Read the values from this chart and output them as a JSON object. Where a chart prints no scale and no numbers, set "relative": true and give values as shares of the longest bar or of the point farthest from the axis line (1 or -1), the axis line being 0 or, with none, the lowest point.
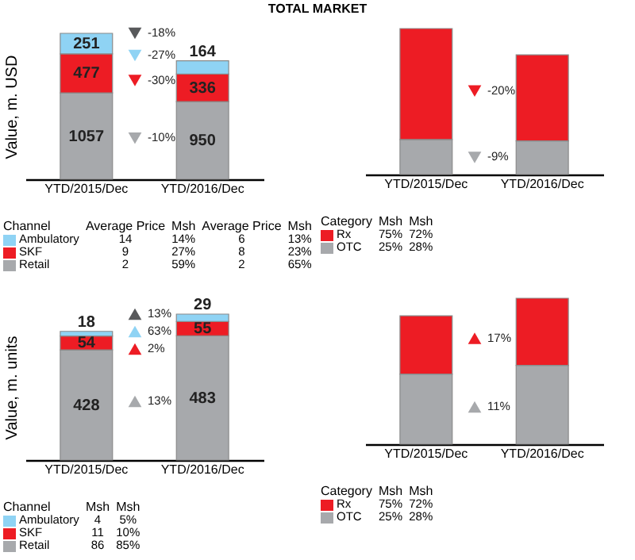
{
  "chart_data": [
    {
      "type": "bar",
      "title": "TOTAL MARKET",
      "stacked": true,
      "ylabel": "Value, m. USD",
      "categories": [
        "YTD/2015/Dec",
        "YTD/2016/Dec"
      ],
      "data_labels": true,
      "tick_labels": "x",
      "legend": "bottom",
      "legend_title": "Channel",
      "series": [
        {
          "name": "Retail",
          "color": "#a7a9ac",
          "values": [
            1057,
            950
          ]
        },
        {
          "name": "SKF",
          "color": "#ed1c24",
          "values": [
            477,
            336
          ]
        },
        {
          "name": "Ambulatory",
          "color": "#8fd3f4",
          "values": [
            251,
            164
          ]
        }
      ],
      "annotations": [
        "-18%",
        "-27%",
        "-30%",
        "-10%",
        "Average Price  Msh  Average Price  Msh",
        "14  14%  6  13%",
        "9  27%  8  23%",
        "2  59%  2  65%"
      ]
    },
    {
      "type": "bar",
      "stacked": true,
      "relative": true,
      "categories": [
        "YTD/2015/Dec",
        "YTD/2016/Dec"
      ],
      "legend": "bottom",
      "legend_title": "Category",
      "series": [
        {
          "name": "OTC",
          "color": "#a7a9ac",
          "values": [
            0.24,
            0.23
          ]
        },
        {
          "name": "Rx",
          "color": "#ed1c24",
          "values": [
            0.76,
            0.59
          ]
        }
      ],
      "annotations": [
        "-20%",
        "-9%",
        "Msh  Msh",
        "75%  72%",
        "25%  28%"
      ]
    },
    {
      "type": "bar",
      "stacked": true,
      "ylabel": "Value, m. units",
      "categories": [
        "YTD/2015/Dec",
        "YTD/2016/Dec"
      ],
      "data_labels": true,
      "tick_labels": "x",
      "legend": "bottom",
      "legend_title": "Channel",
      "series": [
        {
          "name": "Retail",
          "color": "#a7a9ac",
          "values": [
            428,
            483
          ]
        },
        {
          "name": "SKF",
          "color": "#ed1c24",
          "values": [
            54,
            55
          ]
        },
        {
          "name": "Ambulatory",
          "color": "#8fd3f4",
          "values": [
            18,
            29
          ]
        }
      ],
      "annotations": [
        "13%",
        "63%",
        "2%",
        "13%",
        "Msh  Msh",
        "4  5%",
        "11  10%",
        "86  85%"
      ]
    },
    {
      "type": "bar",
      "stacked": true,
      "relative": true,
      "categories": [
        "YTD/2015/Dec",
        "YTD/2016/Dec"
      ],
      "legend": "bottom",
      "legend_title": "Category",
      "series": [
        {
          "name": "OTC",
          "color": "#a7a9ac",
          "values": [
            0.48,
            0.54
          ]
        },
        {
          "name": "Rx",
          "color": "#ed1c24",
          "values": [
            0.4,
            0.46
          ]
        }
      ],
      "annotations": [
        "17%",
        "11%",
        "Msh  Msh",
        "75%  72%",
        "25%  28%"
      ]
    }
  ]
}
